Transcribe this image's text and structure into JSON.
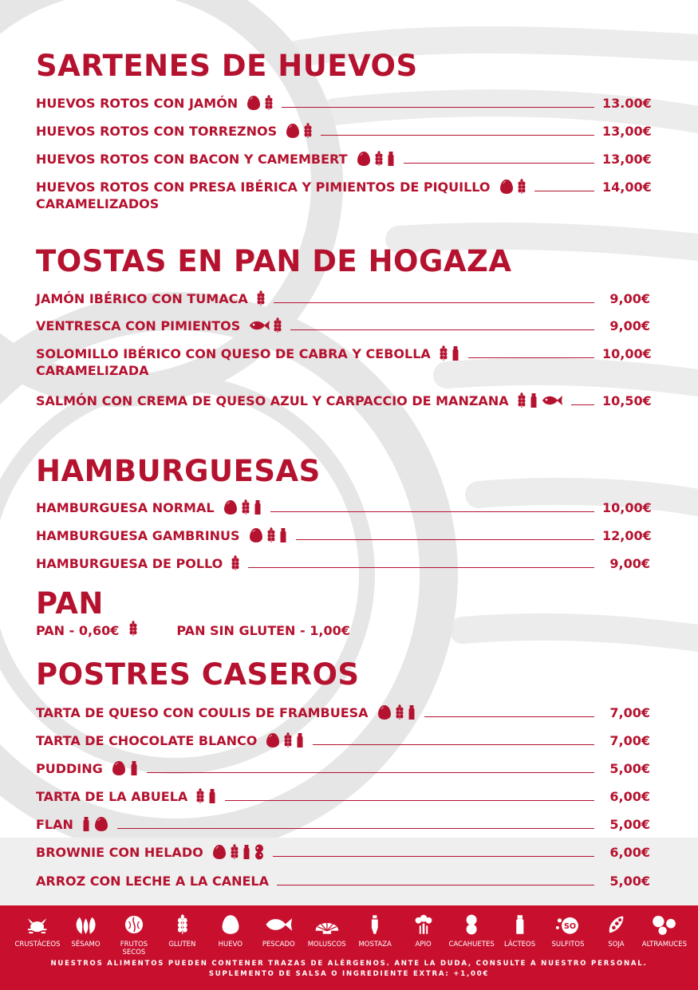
{
  "colors": {
    "accent": "#c8102e",
    "text": "#b5122f",
    "background_art": "#e8e8e8"
  },
  "sections": {
    "sartenes": {
      "title": "SARTENES DE HUEVOS",
      "items": [
        {
          "name": "HUEVOS ROTOS CON JAMÓN",
          "allergens": [
            "huevo-icon",
            "gluten-icon"
          ],
          "price": "13.00€"
        },
        {
          "name": "HUEVOS ROTOS CON TORREZNOS",
          "allergens": [
            "huevo-icon",
            "gluten-icon"
          ],
          "price": "13,00€"
        },
        {
          "name": "HUEVOS ROTOS CON BACON Y CAMEMBERT",
          "allergens": [
            "huevo-icon",
            "gluten-icon",
            "lacteos-icon"
          ],
          "price": "13,00€"
        },
        {
          "name": "HUEVOS ROTOS CON PRESA IBÉRICA Y PIMIENTOS DE PIQUILLO",
          "continuation": "CARAMELIZADOS",
          "allergens": [
            "huevo-icon",
            "gluten-icon"
          ],
          "price": "14,00€"
        }
      ]
    },
    "tostas": {
      "title": "TOSTAS EN PAN DE HOGAZA",
      "items": [
        {
          "name": "JAMÓN IBÉRICO CON TUMACA",
          "allergens": [
            "gluten-icon"
          ],
          "price": "9,00€"
        },
        {
          "name": "VENTRESCA CON PIMIENTOS",
          "allergens": [
            "pescado-icon",
            "gluten-icon"
          ],
          "price": "9,00€"
        },
        {
          "name": "SOLOMILLO IBÉRICO CON QUESO DE CABRA Y CEBOLLA",
          "continuation": "CARAMELIZADA",
          "allergens": [
            "gluten-icon",
            "lacteos-icon"
          ],
          "price": "10,00€"
        },
        {
          "name": "SALMÓN CON CREMA DE QUESO AZUL Y CARPACCIO DE MANZANA",
          "allergens": [
            "gluten-icon",
            "lacteos-icon",
            "pescado-icon"
          ],
          "price": "10,50€"
        }
      ]
    },
    "hamburguesas": {
      "title": "HAMBURGUESAS",
      "items": [
        {
          "name": "HAMBURGUESA NORMAL",
          "allergens": [
            "huevo-icon",
            "gluten-icon",
            "lacteos-icon"
          ],
          "price": "10,00€"
        },
        {
          "name": "HAMBURGUESA GAMBRINUS",
          "allergens": [
            "huevo-icon",
            "gluten-icon",
            "lacteos-icon"
          ],
          "price": "12,00€"
        },
        {
          "name": "HAMBURGUESA DE POLLO",
          "allergens": [
            "gluten-icon"
          ],
          "price": "9,00€"
        }
      ]
    },
    "pan": {
      "title": "PAN",
      "item1": "PAN - 0,60€",
      "item2": "PAN SIN GLUTEN - 1,00€"
    },
    "postres": {
      "title": "POSTRES CASEROS",
      "items": [
        {
          "name": "TARTA DE QUESO CON COULIS DE FRAMBUESA",
          "allergens": [
            "huevo-icon",
            "gluten-icon",
            "lacteos-icon"
          ],
          "price": "7,00€"
        },
        {
          "name": "TARTA DE CHOCOLATE BLANCO",
          "allergens": [
            "huevo-icon",
            "gluten-icon",
            "lacteos-icon"
          ],
          "price": "7,00€"
        },
        {
          "name": "PUDDING",
          "allergens": [
            "huevo-icon",
            "lacteos-icon"
          ],
          "price": "5,00€"
        },
        {
          "name": "TARTA DE LA ABUELA",
          "allergens": [
            "gluten-icon",
            "lacteos-icon"
          ],
          "price": "6,00€"
        },
        {
          "name": "FLAN",
          "allergens": [
            "lacteos-icon",
            "huevo-icon"
          ],
          "price": "5,00€"
        },
        {
          "name": "BROWNIE CON HELADO",
          "allergens": [
            "huevo-icon",
            "gluten-icon",
            "lacteos-icon",
            "cacahuetes-icon"
          ],
          "price": "6,00€"
        },
        {
          "name": "ARROZ CON LECHE A LA CANELA",
          "allergens": [],
          "price": "5,00€"
        }
      ]
    }
  },
  "footer": {
    "legend": [
      {
        "icon": "crustaceos-icon",
        "label": "CRUSTÁCEOS"
      },
      {
        "icon": "sesamo-icon",
        "label": "SÉSAMO"
      },
      {
        "icon": "frutos-secos-icon",
        "label": "FRUTOS SECOS"
      },
      {
        "icon": "gluten-icon",
        "label": "GLUTEN"
      },
      {
        "icon": "huevo-icon",
        "label": "HUEVO"
      },
      {
        "icon": "pescado-icon",
        "label": "PESCADO"
      },
      {
        "icon": "moluscos-icon",
        "label": "MOLUSCOS"
      },
      {
        "icon": "mostaza-icon",
        "label": "MOSTAZA"
      },
      {
        "icon": "apio-icon",
        "label": "APIO"
      },
      {
        "icon": "cacahuetes-icon",
        "label": "CACAHUETES"
      },
      {
        "icon": "lacteos-icon",
        "label": "LÁCTEOS"
      },
      {
        "icon": "sulfitos-icon",
        "label": "SULFITOS",
        "badge": "SO"
      },
      {
        "icon": "soja-icon",
        "label": "SOJA"
      },
      {
        "icon": "altramuces-icon",
        "label": "ALTRAMUCES"
      }
    ],
    "note1": "NUESTROS ALIMENTOS PUEDEN CONTENER TRAZAS DE ALÉRGENOS. ANTE LA DUDA, CONSULTE A NUESTRO PERSONAL.",
    "note2": "SUPLEMENTO DE SALSA O INGREDIENTE EXTRA: +1,00€"
  }
}
